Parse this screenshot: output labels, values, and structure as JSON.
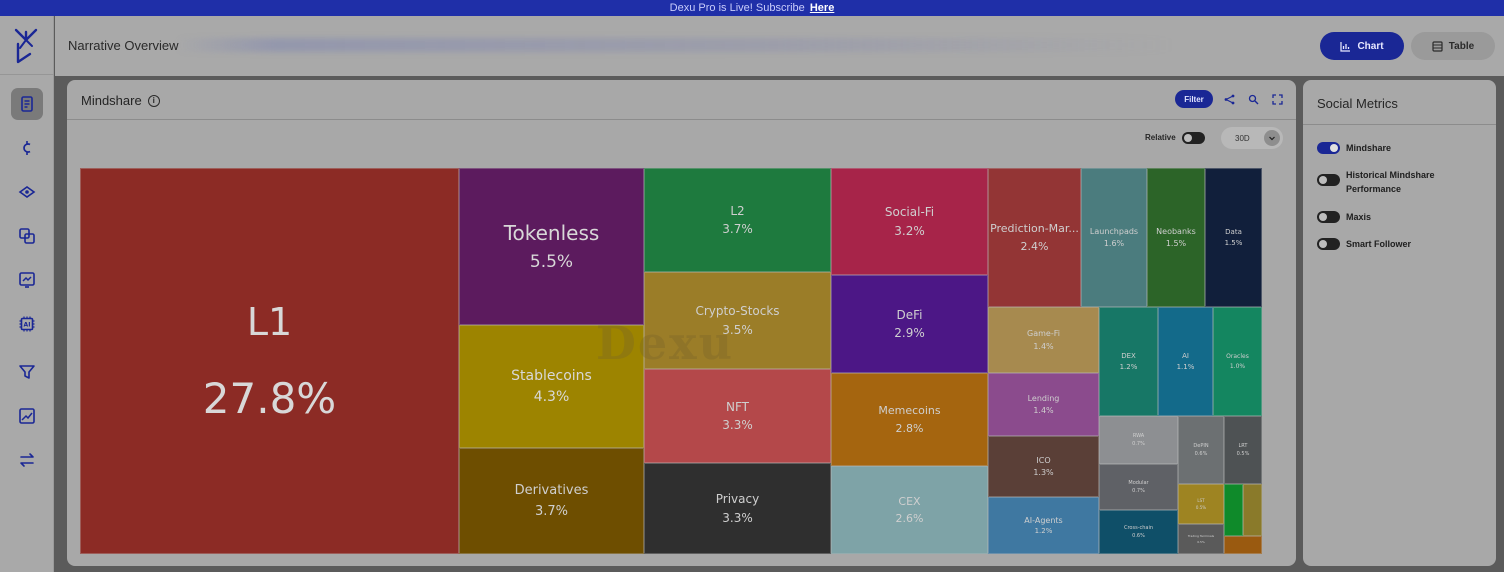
{
  "banner": {
    "text": "Dexu Pro is Live! Subscribe",
    "link": "Here"
  },
  "sidebar": {
    "items": [
      {
        "icon": "document-icon",
        "active": true
      },
      {
        "icon": "coin-icon",
        "active": false
      },
      {
        "icon": "diamond-icon",
        "active": false
      },
      {
        "icon": "copy-icon",
        "active": false
      },
      {
        "icon": "swap-chart-icon",
        "active": false
      },
      {
        "icon": "ai-chip-icon",
        "active": false
      },
      {
        "icon": "funnel-icon",
        "active": false
      },
      {
        "icon": "grid-chart-icon",
        "active": false
      },
      {
        "icon": "arrows-swap-icon",
        "active": false
      }
    ]
  },
  "header": {
    "title": "Narrative Overview",
    "chart_btn": "Chart",
    "table_btn": "Table"
  },
  "panel": {
    "title": "Mindshare",
    "filter_btn": "Filter",
    "relative_label": "Relative",
    "period": "30D"
  },
  "watermark": "Dexu",
  "right_panel": {
    "title": "Social Metrics",
    "metrics": [
      {
        "label": "Mindshare",
        "on": true
      },
      {
        "label": "Historical Mindshare Performance",
        "on": false
      },
      {
        "label": "Maxis",
        "on": false
      },
      {
        "label": "Smart Follower",
        "on": false
      }
    ]
  },
  "chart_data": {
    "type": "treemap",
    "title": "",
    "series": [
      {
        "name": "L1",
        "value": "27.8%",
        "color": "#8c2b25"
      },
      {
        "name": "Tokenless",
        "value": "5.5%",
        "color": "#5c1b5e"
      },
      {
        "name": "Stablecoins",
        "value": "4.3%",
        "color": "#9d8400"
      },
      {
        "name": "Derivatives",
        "value": "3.7%",
        "color": "#6e4e00"
      },
      {
        "name": "L2",
        "value": "3.7%",
        "color": "#1e7a3e"
      },
      {
        "name": "Crypto-Stocks",
        "value": "3.5%",
        "color": "#9b7d28"
      },
      {
        "name": "NFT",
        "value": "3.3%",
        "color": "#b4484a"
      },
      {
        "name": "Privacy",
        "value": "3.3%",
        "color": "#2f2f2f"
      },
      {
        "name": "Social-Fi",
        "value": "3.2%",
        "color": "#a72449"
      },
      {
        "name": "DeFi",
        "value": "2.9%",
        "color": "#4c1786"
      },
      {
        "name": "Memecoins",
        "value": "2.8%",
        "color": "#a5650f"
      },
      {
        "name": "CEX",
        "value": "2.6%",
        "color": "#7ea3a7"
      },
      {
        "name": "Prediction-Mar...",
        "value": "2.4%",
        "color": "#933535"
      },
      {
        "name": "Launchpads",
        "value": "1.6%",
        "color": "#4b7c7e"
      },
      {
        "name": "Neobanks",
        "value": "1.5%",
        "color": "#2c6428"
      },
      {
        "name": "Data",
        "value": "1.5%",
        "color": "#111f3b"
      },
      {
        "name": "Game-Fi",
        "value": "1.4%",
        "color": "#a78a4f"
      },
      {
        "name": "Lending",
        "value": "1.4%",
        "color": "#8b4b8d"
      },
      {
        "name": "ICO",
        "value": "1.3%",
        "color": "#5a3f37"
      },
      {
        "name": "AI-Agents",
        "value": "1.2%",
        "color": "#3f78a1"
      },
      {
        "name": "DEX",
        "value": "1.2%",
        "color": "#177766"
      },
      {
        "name": "AI",
        "value": "1.1%",
        "color": "#136a8a"
      },
      {
        "name": "Oracles",
        "value": "1.0%",
        "color": "#148660"
      },
      {
        "name": "RWA",
        "value": "0.7%",
        "color": "#8d8f92"
      },
      {
        "name": "Modular",
        "value": "0.7%",
        "color": "#5f6166"
      },
      {
        "name": "Cross-chain",
        "value": "0.6%",
        "color": "#0f4f68"
      },
      {
        "name": "DePIN",
        "value": "0.6%",
        "color": "#6c7072"
      },
      {
        "name": "LRT",
        "value": "0.5%",
        "color": "#4e5254"
      },
      {
        "name": "LST",
        "value": "0.5%",
        "color": "#9e8422"
      },
      {
        "name": "Trading Terminals",
        "value": "0.5%",
        "color": "#5a5a5a"
      },
      {
        "name": "",
        "value": "",
        "color": "#0f8a2a"
      },
      {
        "name": "",
        "value": "",
        "color": "#8a7a2a"
      },
      {
        "name": "",
        "value": "",
        "color": "#9a5a10"
      }
    ]
  }
}
